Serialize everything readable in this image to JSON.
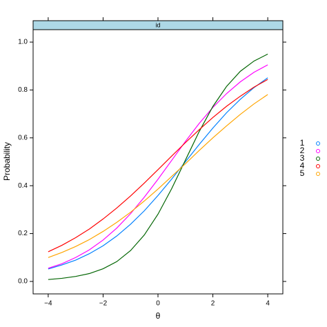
{
  "chart_data": {
    "type": "line",
    "strip": "id",
    "xlabel": "θ",
    "ylabel": "Probability",
    "x": [
      -4,
      -3.5,
      -3,
      -2.5,
      -2,
      -1.5,
      -1,
      -0.5,
      0,
      0.5,
      1,
      1.5,
      2,
      2.5,
      3,
      3.5,
      4
    ],
    "series": [
      {
        "name": "1",
        "color": "#0080ff",
        "values": [
          0.052,
          0.069,
          0.089,
          0.116,
          0.149,
          0.19,
          0.239,
          0.295,
          0.359,
          0.428,
          0.5,
          0.572,
          0.641,
          0.705,
          0.761,
          0.81,
          0.851
        ]
      },
      {
        "name": "2",
        "color": "#ff00ff",
        "values": [
          0.055,
          0.074,
          0.1,
          0.132,
          0.173,
          0.223,
          0.283,
          0.352,
          0.427,
          0.506,
          0.585,
          0.66,
          0.727,
          0.785,
          0.834,
          0.874,
          0.905
        ]
      },
      {
        "name": "3",
        "color": "#006400",
        "values": [
          0.008,
          0.013,
          0.021,
          0.033,
          0.053,
          0.083,
          0.129,
          0.194,
          0.281,
          0.388,
          0.507,
          0.626,
          0.731,
          0.815,
          0.878,
          0.921,
          0.95
        ]
      },
      {
        "name": "4",
        "color": "#ff0000",
        "values": [
          0.124,
          0.151,
          0.183,
          0.219,
          0.261,
          0.307,
          0.357,
          0.411,
          0.467,
          0.524,
          0.58,
          0.634,
          0.685,
          0.732,
          0.774,
          0.812,
          0.844
        ]
      },
      {
        "name": "5",
        "color": "#ffa500",
        "values": [
          0.1,
          0.121,
          0.146,
          0.175,
          0.209,
          0.247,
          0.289,
          0.336,
          0.386,
          0.439,
          0.492,
          0.547,
          0.6,
          0.65,
          0.698,
          0.742,
          0.781
        ]
      }
    ],
    "xlim": [
      -4.55,
      4.55
    ],
    "ylim": [
      -0.052,
      1.052
    ],
    "xticks": [
      {
        "value": -4,
        "label": "−4"
      },
      {
        "value": -2,
        "label": "−2"
      },
      0,
      2,
      4
    ],
    "yticks": [
      {
        "value": 0,
        "label": "0.0"
      },
      {
        "value": 0.2,
        "label": "0.2"
      },
      {
        "value": 0.4,
        "label": "0.4"
      },
      {
        "value": 0.6,
        "label": "0.6"
      },
      {
        "value": 0.8,
        "label": "0.8"
      },
      {
        "value": 1,
        "label": "1.0"
      }
    ],
    "legend": "right",
    "strip_color": "#add8e6"
  }
}
